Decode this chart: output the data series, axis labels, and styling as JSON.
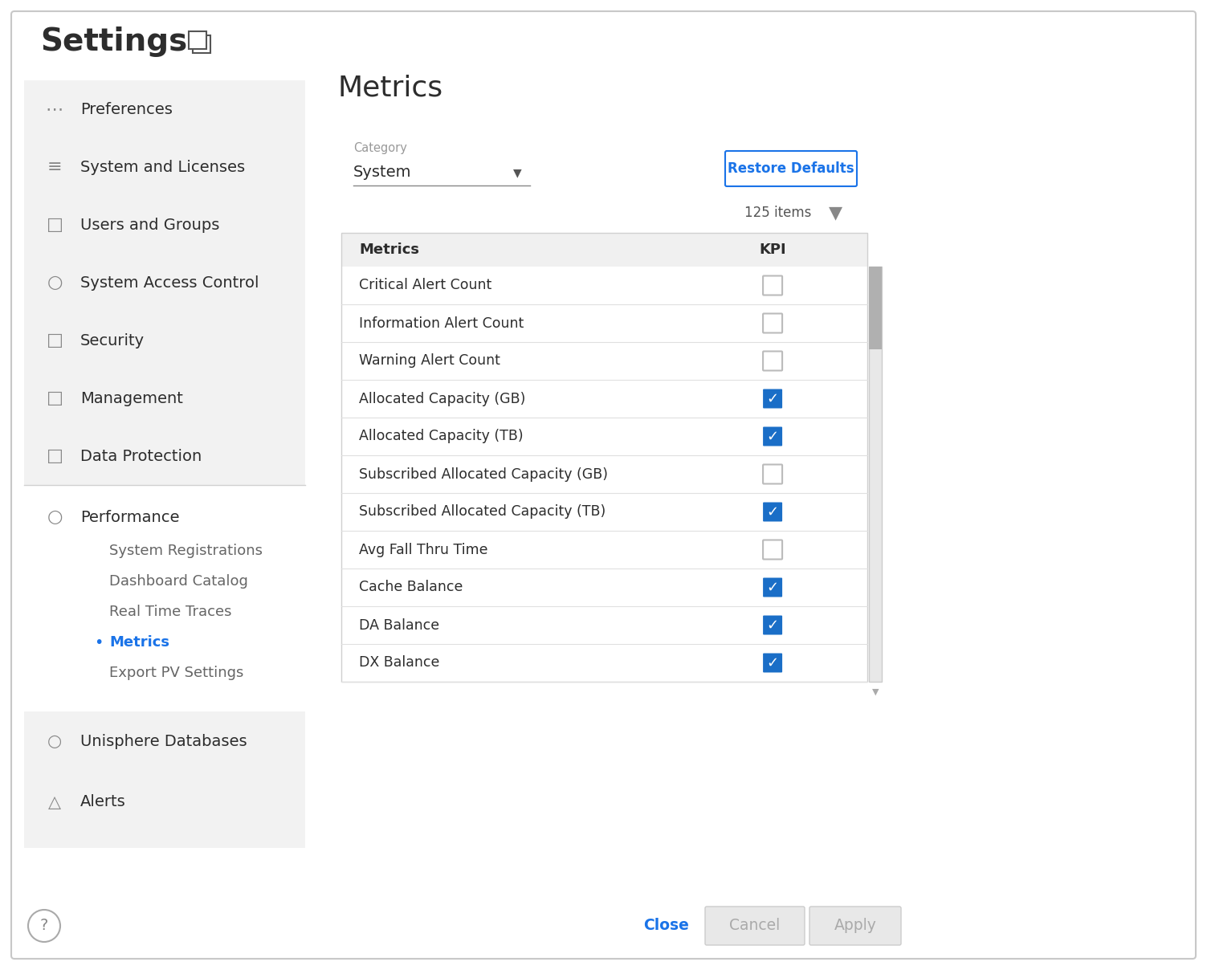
{
  "title": "Settings",
  "bg_color": "#ffffff",
  "sidebar_bg": "#f2f2f2",
  "sidebar_items": [
    {
      "label": "Preferences"
    },
    {
      "label": "System and Licenses"
    },
    {
      "label": "Users and Groups"
    },
    {
      "label": "System Access Control"
    },
    {
      "label": "Security"
    },
    {
      "label": "Management"
    },
    {
      "label": "Data Protection"
    }
  ],
  "performance_subitems": [
    "System Registrations",
    "Dashboard Catalog",
    "Real Time Traces",
    "Metrics",
    "Export PV Settings"
  ],
  "active_subitem": "Metrics",
  "bottom_items": [
    {
      "label": "Unisphere Databases"
    },
    {
      "label": "Alerts"
    }
  ],
  "content_title": "Metrics",
  "category_label": "Category",
  "category_value": "System",
  "items_count": "125 items",
  "table_headers": [
    "Metrics",
    "KPI"
  ],
  "table_rows": [
    {
      "name": "Critical Alert Count",
      "checked": false
    },
    {
      "name": "Information Alert Count",
      "checked": false
    },
    {
      "name": "Warning Alert Count",
      "checked": false
    },
    {
      "name": "Allocated Capacity (GB)",
      "checked": true
    },
    {
      "name": "Allocated Capacity (TB)",
      "checked": true
    },
    {
      "name": "Subscribed Allocated Capacity (GB)",
      "checked": false
    },
    {
      "name": "Subscribed Allocated Capacity (TB)",
      "checked": true
    },
    {
      "name": "Avg Fall Thru Time",
      "checked": false
    },
    {
      "name": "Cache Balance",
      "checked": true
    },
    {
      "name": "DA Balance",
      "checked": true
    },
    {
      "name": "DX Balance",
      "checked": true
    }
  ],
  "btn_restore": "Restore Defaults",
  "btn_close": "Close",
  "btn_cancel": "Cancel",
  "btn_apply": "Apply",
  "blue_color": "#1a73e8",
  "check_blue": "#1a6ec7",
  "text_color": "#2d2d2d",
  "light_gray": "#e8e8e8",
  "medium_gray": "#aaaaaa",
  "header_gray": "#f0f0f0",
  "border_color": "#d0d0d0",
  "icon_color": "#888888",
  "sub_text_color": "#666666",
  "sidebar_border": "#d0d0d0"
}
